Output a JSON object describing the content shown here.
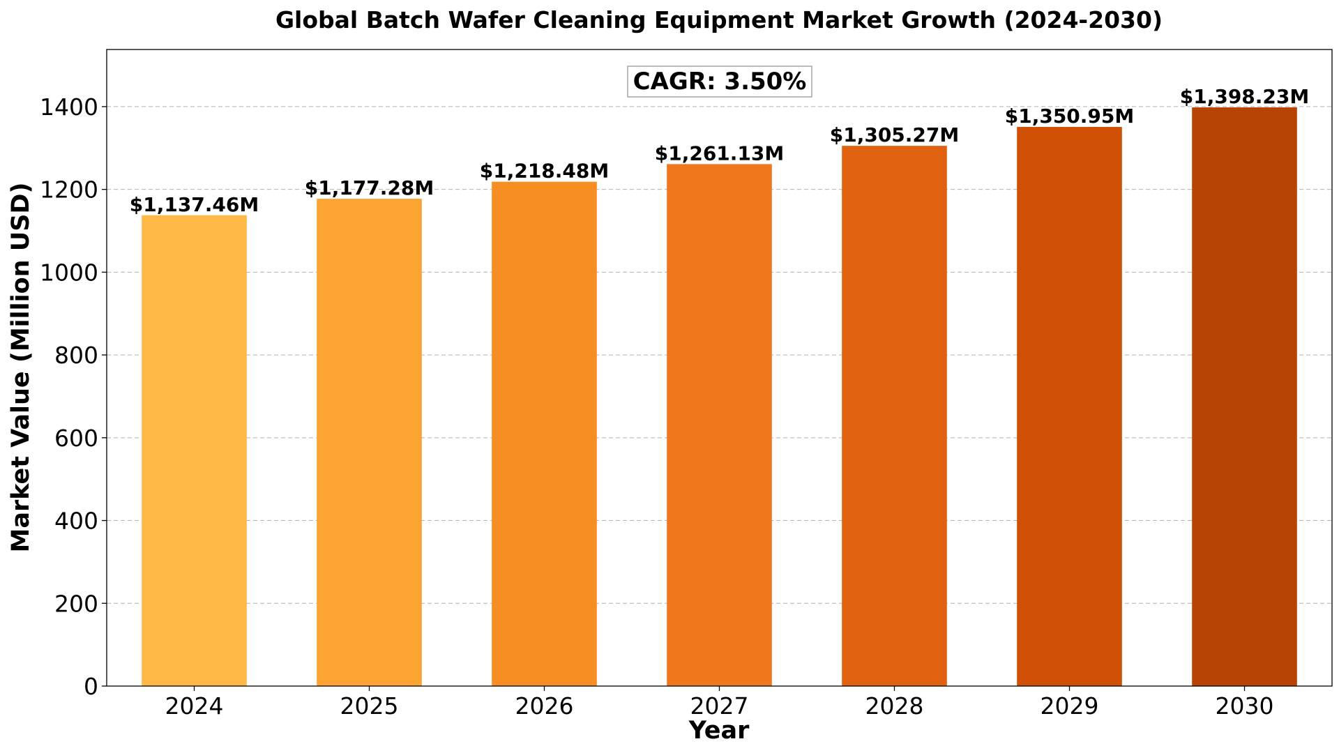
{
  "chart_data": {
    "type": "bar",
    "title": "Global Batch Wafer Cleaning Equipment Market Growth (2024-2030)",
    "xlabel": "Year",
    "ylabel": "Market Value (Million USD)",
    "categories": [
      "2024",
      "2025",
      "2026",
      "2027",
      "2028",
      "2029",
      "2030"
    ],
    "values": [
      1137.46,
      1177.28,
      1218.48,
      1261.13,
      1305.27,
      1350.95,
      1398.23
    ],
    "data_labels": [
      "$1,137.46M",
      "$1,177.28M",
      "$1,218.48M",
      "$1,261.13M",
      "$1,305.27M",
      "$1,350.95M",
      "$1,398.23M"
    ],
    "bar_colors": [
      "#fdb845",
      "#fca432",
      "#f78e24",
      "#ef771c",
      "#e06211",
      "#d05105",
      "#b74304"
    ],
    "ylim": [
      0,
      1538
    ],
    "yticks": [
      0,
      200,
      400,
      600,
      800,
      1000,
      1200,
      1400
    ],
    "grid": "horizontal dashed",
    "annotation": "CAGR: 3.50%"
  }
}
